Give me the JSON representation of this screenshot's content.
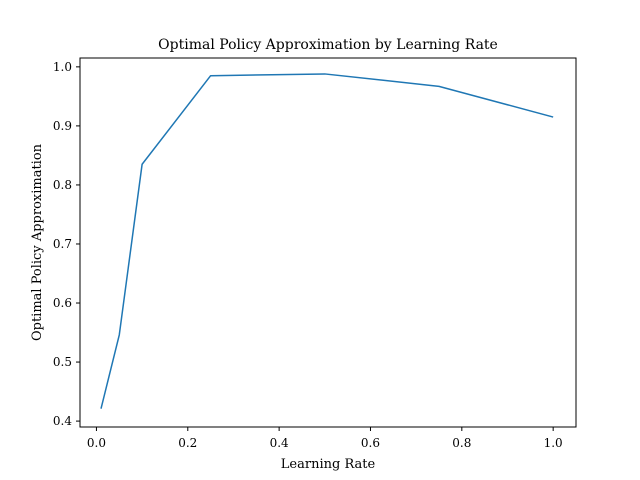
{
  "chart_data": {
    "type": "line",
    "title": "Optimal Policy Approximation by Learning Rate",
    "xlabel": "Learning Rate",
    "ylabel": "Optimal Policy Approximation",
    "xlim": [
      -0.036,
      1.05
    ],
    "ylim": [
      0.39,
      1.015
    ],
    "xticks": [
      0.0,
      0.2,
      0.4,
      0.6,
      0.8,
      1.0
    ],
    "xtick_labels": [
      "0.0",
      "0.2",
      "0.4",
      "0.6",
      "0.8",
      "1.0"
    ],
    "yticks": [
      0.4,
      0.5,
      0.6,
      0.7,
      0.8,
      0.9,
      1.0
    ],
    "ytick_labels": [
      "0.4",
      "0.5",
      "0.6",
      "0.7",
      "0.8",
      "0.9",
      "1.0"
    ],
    "grid": false,
    "legend": "none",
    "series": [
      {
        "color": "#1f77b4",
        "x": [
          0.01,
          0.05,
          0.1,
          0.25,
          0.5,
          0.75,
          1.0
        ],
        "y": [
          0.421,
          0.546,
          0.835,
          0.985,
          0.988,
          0.967,
          0.915
        ]
      }
    ]
  }
}
